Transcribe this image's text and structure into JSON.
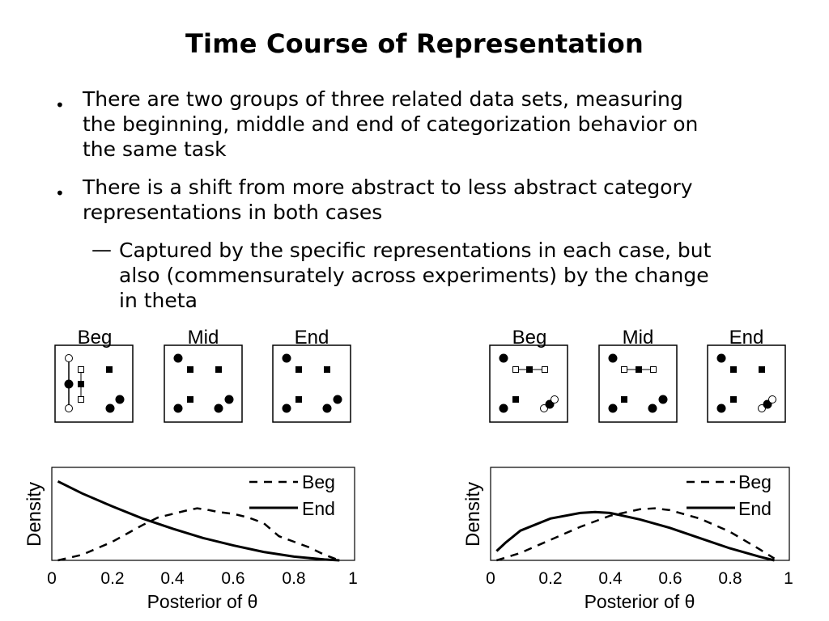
{
  "slide": {
    "title": "Time Course of Representation",
    "bullets": [
      {
        "text_lines": [
          "There are two groups of three related data sets, measuring",
          "the beginning, middle and end of categorization behavior on",
          "the same task"
        ]
      },
      {
        "text_lines": [
          "There is a shift from more abstract to less abstract category",
          "representations in both cases"
        ]
      }
    ],
    "sub_bullet": {
      "marker": "—",
      "text_lines": [
        "Captured by the specific representations in each case, but",
        "also (commensurately across experiments) by the change",
        "in theta"
      ]
    }
  },
  "figure": {
    "panel_labels": [
      "Beg",
      "Mid",
      "End"
    ]
  },
  "chart_data": [
    {
      "type": "line",
      "xlabel": "Posterior of θ",
      "ylabel": "Density",
      "xlim": [
        0,
        1
      ],
      "xticks": [
        "0",
        "0.2",
        "0.4",
        "0.6",
        "0.8",
        "1"
      ],
      "legend_position": "top-right",
      "series": [
        {
          "name": "Beg",
          "style": "dashed",
          "x": [
            0.02,
            0.1,
            0.2,
            0.3,
            0.35,
            0.4,
            0.45,
            0.48,
            0.52,
            0.55,
            0.6,
            0.65,
            0.7,
            0.75,
            0.8,
            0.85,
            0.9,
            0.95
          ],
          "y": [
            0.0,
            0.06,
            0.2,
            0.38,
            0.46,
            0.5,
            0.54,
            0.56,
            0.54,
            0.52,
            0.5,
            0.46,
            0.4,
            0.26,
            0.2,
            0.14,
            0.06,
            0.0
          ]
        },
        {
          "name": "End",
          "style": "solid",
          "x": [
            0.02,
            0.1,
            0.2,
            0.3,
            0.4,
            0.5,
            0.6,
            0.7,
            0.8,
            0.9,
            0.95
          ],
          "y": [
            0.85,
            0.72,
            0.58,
            0.45,
            0.34,
            0.24,
            0.16,
            0.09,
            0.04,
            0.01,
            0.0
          ]
        }
      ]
    },
    {
      "type": "line",
      "xlabel": "Posterior of θ",
      "ylabel": "Density",
      "xlim": [
        0,
        1
      ],
      "xticks": [
        "0",
        "0.2",
        "0.4",
        "0.6",
        "0.8",
        "1"
      ],
      "legend_position": "top-right",
      "series": [
        {
          "name": "Beg",
          "style": "dashed",
          "x": [
            0.02,
            0.1,
            0.2,
            0.3,
            0.4,
            0.5,
            0.55,
            0.6,
            0.7,
            0.8,
            0.9,
            0.95
          ],
          "y": [
            0.0,
            0.08,
            0.22,
            0.36,
            0.48,
            0.55,
            0.56,
            0.54,
            0.45,
            0.31,
            0.12,
            0.02
          ]
        },
        {
          "name": "End",
          "style": "solid",
          "x": [
            0.02,
            0.05,
            0.1,
            0.2,
            0.3,
            0.35,
            0.4,
            0.5,
            0.6,
            0.7,
            0.8,
            0.9,
            0.95
          ],
          "y": [
            0.1,
            0.19,
            0.32,
            0.45,
            0.51,
            0.52,
            0.51,
            0.44,
            0.35,
            0.24,
            0.13,
            0.04,
            0.0
          ]
        }
      ]
    }
  ]
}
